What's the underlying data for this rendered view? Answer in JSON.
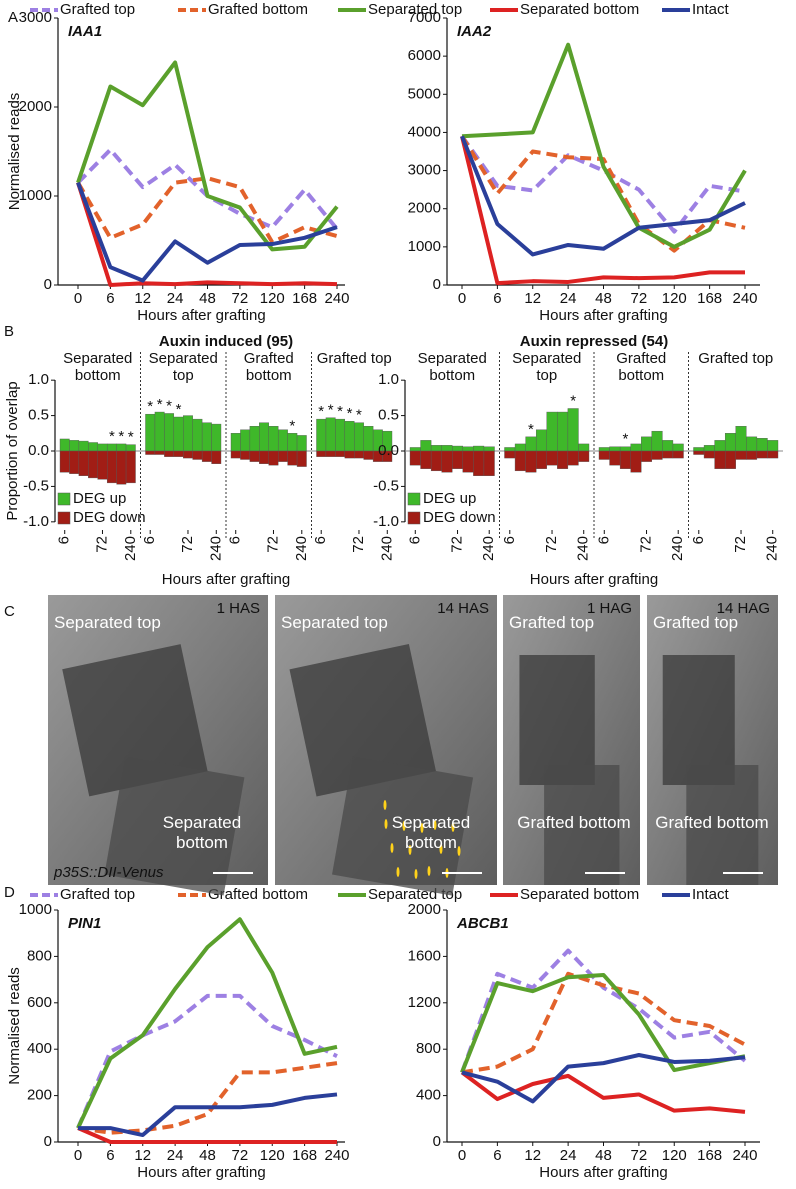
{
  "panels": [
    "A",
    "B",
    "C",
    "D"
  ],
  "micrographs": {
    "reporter": "p35S::DII-Venus",
    "images": [
      {
        "time": "1 HAS",
        "top": "Separated top",
        "bottom": "Separated bottom"
      },
      {
        "time": "14 HAS",
        "top": "Separated top",
        "bottom": "Separated bottom"
      },
      {
        "time": "1 HAG",
        "top": "Grafted top",
        "bottom": "Grafted bottom"
      },
      {
        "time": "14 HAG",
        "top": "Grafted top",
        "bottom": "Grafted bottom"
      }
    ]
  },
  "chart_data": [
    {
      "type": "line",
      "title": "IAA1",
      "y_label": "Normalised reads",
      "x_label": "Hours after grafting",
      "legend": "top",
      "categories": [
        "0",
        "6",
        "12",
        "24",
        "48",
        "72",
        "120",
        "168",
        "240"
      ],
      "ylim": [
        0,
        3000
      ],
      "yticks": [
        0,
        1000,
        2000,
        3000
      ],
      "series": [
        {
          "name": "Grafted top",
          "color": "#9d80e3",
          "dashed": true,
          "values": [
            1150,
            1520,
            1100,
            1350,
            1000,
            800,
            650,
            1070,
            630
          ]
        },
        {
          "name": "Grafted bottom",
          "color": "#e2622b",
          "dashed": true,
          "values": [
            1150,
            530,
            680,
            1150,
            1200,
            1100,
            480,
            650,
            550
          ]
        },
        {
          "name": "Separated top",
          "color": "#5aa02c",
          "dashed": false,
          "values": [
            1150,
            2230,
            2020,
            2500,
            1000,
            870,
            400,
            430,
            880
          ]
        },
        {
          "name": "Separated bottom",
          "color": "#dd2222",
          "dashed": false,
          "values": [
            1150,
            0,
            20,
            10,
            30,
            20,
            10,
            20,
            10
          ]
        },
        {
          "name": "Intact",
          "color": "#2a3f9a",
          "dashed": false,
          "values": [
            1150,
            200,
            50,
            490,
            250,
            450,
            460,
            530,
            650
          ]
        }
      ]
    },
    {
      "type": "line",
      "title": "IAA2",
      "x_label": "Hours after grafting",
      "categories": [
        "0",
        "6",
        "12",
        "24",
        "48",
        "72",
        "120",
        "168",
        "240"
      ],
      "ylim": [
        0,
        7000
      ],
      "yticks": [
        0,
        1000,
        2000,
        3000,
        4000,
        5000,
        6000,
        7000
      ],
      "series": [
        {
          "name": "Grafted top",
          "color": "#9d80e3",
          "dashed": true,
          "values": [
            3900,
            2600,
            2480,
            3400,
            3000,
            2500,
            1400,
            2600,
            2450
          ]
        },
        {
          "name": "Grafted bottom",
          "color": "#e2622b",
          "dashed": true,
          "values": [
            3900,
            2400,
            3500,
            3350,
            3300,
            1600,
            900,
            1700,
            1500
          ]
        },
        {
          "name": "Separated top",
          "color": "#5aa02c",
          "dashed": false,
          "values": [
            3900,
            3950,
            4000,
            6300,
            3100,
            1500,
            1000,
            1450,
            3000
          ]
        },
        {
          "name": "Separated bottom",
          "color": "#dd2222",
          "dashed": false,
          "values": [
            3900,
            50,
            100,
            80,
            200,
            180,
            200,
            330,
            330
          ]
        },
        {
          "name": "Intact",
          "color": "#2a3f9a",
          "dashed": false,
          "values": [
            3900,
            1600,
            800,
            1050,
            950,
            1500,
            1600,
            1700,
            2150
          ]
        }
      ]
    },
    {
      "type": "bar",
      "title": "Auxin induced (95)",
      "y_label": "Proportion of overlap",
      "x_label": "Hours after grafting",
      "legend": "lower left",
      "categories": [
        "6",
        null,
        null,
        null,
        "72",
        null,
        null,
        "240"
      ],
      "ylim": [
        -1.2,
        1.2
      ],
      "yticks": [
        {
          "value": 1,
          "label": "1.0"
        },
        {
          "value": 0.5,
          "label": "0.5"
        },
        {
          "value": 0,
          "label": "0.0"
        },
        {
          "value": -0.5,
          "label": "-0.5"
        },
        {
          "value": -1,
          "label": "-1.0"
        }
      ],
      "groups": [
        {
          "name": "Separated bottom",
          "stars": [
            null,
            null,
            null,
            null,
            null,
            "*",
            "*",
            "*"
          ],
          "series": [
            {
              "name": "DEG up",
              "color": "#3fb82a",
              "values": [
                0.17,
                0.15,
                0.14,
                0.12,
                0.1,
                0.1,
                0.1,
                0.09
              ]
            },
            {
              "name": "DEG down",
              "color": "#a11d15",
              "values": [
                -0.3,
                -0.32,
                -0.35,
                -0.38,
                -0.4,
                -0.45,
                -0.47,
                -0.45
              ]
            }
          ]
        },
        {
          "name": "Separated top",
          "stars": [
            "*",
            "*",
            "*",
            "*",
            null,
            null,
            null,
            null
          ],
          "series": [
            {
              "name": "DEG up",
              "color": "#3fb82a",
              "values": [
                0.52,
                0.55,
                0.53,
                0.48,
                0.5,
                0.45,
                0.4,
                0.38
              ]
            },
            {
              "name": "DEG down",
              "color": "#a11d15",
              "values": [
                -0.05,
                -0.05,
                -0.08,
                -0.08,
                -0.1,
                -0.12,
                -0.15,
                -0.18
              ]
            }
          ]
        },
        {
          "name": "Grafted bottom",
          "stars": [
            null,
            null,
            null,
            null,
            null,
            null,
            "*",
            null
          ],
          "series": [
            {
              "name": "DEG up",
              "color": "#3fb82a",
              "values": [
                0.25,
                0.3,
                0.35,
                0.4,
                0.35,
                0.3,
                0.25,
                0.22
              ]
            },
            {
              "name": "DEG down",
              "color": "#a11d15",
              "values": [
                -0.1,
                -0.12,
                -0.15,
                -0.18,
                -0.2,
                -0.15,
                -0.2,
                -0.22
              ]
            }
          ]
        },
        {
          "name": "Grafted top",
          "stars": [
            "*",
            "*",
            "*",
            "*",
            "*",
            null,
            null,
            null
          ],
          "series": [
            {
              "name": "DEG up",
              "color": "#3fb82a",
              "values": [
                0.45,
                0.47,
                0.45,
                0.42,
                0.4,
                0.35,
                0.3,
                0.28
              ]
            },
            {
              "name": "DEG down",
              "color": "#a11d15",
              "values": [
                -0.08,
                -0.08,
                -0.08,
                -0.1,
                -0.1,
                -0.12,
                -0.15,
                -0.15
              ]
            }
          ]
        }
      ]
    },
    {
      "type": "bar",
      "title": "Auxin repressed (54)",
      "x_label": "Hours after grafting",
      "legend": "lower left",
      "categories": [
        "6",
        null,
        null,
        null,
        "72",
        null,
        null,
        "240"
      ],
      "ylim": [
        -1.2,
        1.2
      ],
      "yticks": [
        {
          "value": 1,
          "label": "1.0"
        },
        {
          "value": 0.5,
          "label": "0.5"
        },
        {
          "value": 0,
          "label": "0.0"
        },
        {
          "value": -0.5,
          "label": "-0.5"
        },
        {
          "value": -1,
          "label": "-1.0"
        }
      ],
      "groups": [
        {
          "name": "Separated bottom",
          "stars": [
            null,
            null,
            null,
            null,
            null,
            null,
            null,
            null
          ],
          "series": [
            {
              "name": "DEG up",
              "color": "#3fb82a",
              "values": [
                0.05,
                0.15,
                0.08,
                0.08,
                0.07,
                0.06,
                0.07,
                0.06
              ]
            },
            {
              "name": "DEG down",
              "color": "#a11d15",
              "values": [
                -0.2,
                -0.25,
                -0.28,
                -0.3,
                -0.25,
                -0.3,
                -0.35,
                -0.35
              ]
            }
          ]
        },
        {
          "name": "Separated top",
          "stars": [
            null,
            null,
            "*",
            null,
            null,
            null,
            "*",
            null
          ],
          "series": [
            {
              "name": "DEG up",
              "color": "#3fb82a",
              "values": [
                0.05,
                0.1,
                0.2,
                0.3,
                0.55,
                0.55,
                0.6,
                0.1
              ]
            },
            {
              "name": "DEG down",
              "color": "#a11d15",
              "values": [
                -0.1,
                -0.28,
                -0.3,
                -0.25,
                -0.2,
                -0.25,
                -0.2,
                -0.15
              ]
            }
          ]
        },
        {
          "name": "Grafted bottom",
          "stars": [
            null,
            null,
            "*",
            null,
            null,
            null,
            null,
            null
          ],
          "series": [
            {
              "name": "DEG up",
              "color": "#3fb82a",
              "values": [
                0.05,
                0.06,
                0.06,
                0.1,
                0.2,
                0.28,
                0.15,
                0.1
              ]
            },
            {
              "name": "DEG down",
              "color": "#a11d15",
              "values": [
                -0.12,
                -0.2,
                -0.25,
                -0.3,
                -0.15,
                -0.12,
                -0.1,
                -0.1
              ]
            }
          ]
        },
        {
          "name": "Grafted top",
          "stars": [
            null,
            null,
            null,
            null,
            null,
            null,
            null,
            null
          ],
          "series": [
            {
              "name": "DEG up",
              "color": "#3fb82a",
              "values": [
                0.05,
                0.08,
                0.15,
                0.25,
                0.35,
                0.2,
                0.18,
                0.15
              ]
            },
            {
              "name": "DEG down",
              "color": "#a11d15",
              "values": [
                -0.05,
                -0.1,
                -0.25,
                -0.25,
                -0.12,
                -0.12,
                -0.1,
                -0.1
              ]
            }
          ]
        }
      ]
    },
    {
      "type": "line",
      "title": "PIN1",
      "y_label": "Normalised reads",
      "x_label": "Hours after grafting",
      "legend": "top",
      "categories": [
        "0",
        "6",
        "12",
        "24",
        "48",
        "72",
        "120",
        "168",
        "240"
      ],
      "ylim": [
        0,
        1000
      ],
      "yticks": [
        0,
        200,
        400,
        600,
        800,
        1000
      ],
      "series": [
        {
          "name": "Grafted top",
          "color": "#9d80e3",
          "dashed": true,
          "values": [
            60,
            390,
            460,
            520,
            630,
            630,
            500,
            440,
            370
          ]
        },
        {
          "name": "Grafted bottom",
          "color": "#e2622b",
          "dashed": true,
          "values": [
            60,
            40,
            50,
            70,
            120,
            300,
            300,
            320,
            340
          ]
        },
        {
          "name": "Separated top",
          "color": "#5aa02c",
          "dashed": false,
          "values": [
            60,
            360,
            460,
            660,
            840,
            960,
            730,
            380,
            410
          ]
        },
        {
          "name": "Separated bottom",
          "color": "#dd2222",
          "dashed": false,
          "values": [
            60,
            0,
            0,
            0,
            0,
            0,
            0,
            0,
            0
          ]
        },
        {
          "name": "Intact",
          "color": "#2a3f9a",
          "dashed": false,
          "values": [
            60,
            60,
            30,
            150,
            150,
            150,
            160,
            190,
            205
          ]
        }
      ]
    },
    {
      "type": "line",
      "title": "ABCB1",
      "x_label": "Hours after grafting",
      "categories": [
        "0",
        "6",
        "12",
        "24",
        "48",
        "72",
        "120",
        "168",
        "240"
      ],
      "ylim": [
        0,
        2000
      ],
      "yticks": [
        0,
        400,
        800,
        1200,
        1600,
        2000
      ],
      "series": [
        {
          "name": "Grafted top",
          "color": "#9d80e3",
          "dashed": true,
          "values": [
            600,
            1450,
            1330,
            1650,
            1330,
            1150,
            900,
            950,
            700
          ]
        },
        {
          "name": "Grafted bottom",
          "color": "#e2622b",
          "dashed": true,
          "values": [
            600,
            650,
            800,
            1450,
            1350,
            1280,
            1050,
            1000,
            840
          ]
        },
        {
          "name": "Separated top",
          "color": "#5aa02c",
          "dashed": false,
          "values": [
            600,
            1370,
            1300,
            1420,
            1440,
            1100,
            620,
            680,
            740
          ]
        },
        {
          "name": "Separated bottom",
          "color": "#dd2222",
          "dashed": false,
          "values": [
            600,
            370,
            500,
            570,
            380,
            410,
            270,
            290,
            260
          ]
        },
        {
          "name": "Intact",
          "color": "#2a3f9a",
          "dashed": false,
          "values": [
            600,
            520,
            350,
            650,
            680,
            750,
            690,
            700,
            730
          ]
        }
      ]
    }
  ]
}
